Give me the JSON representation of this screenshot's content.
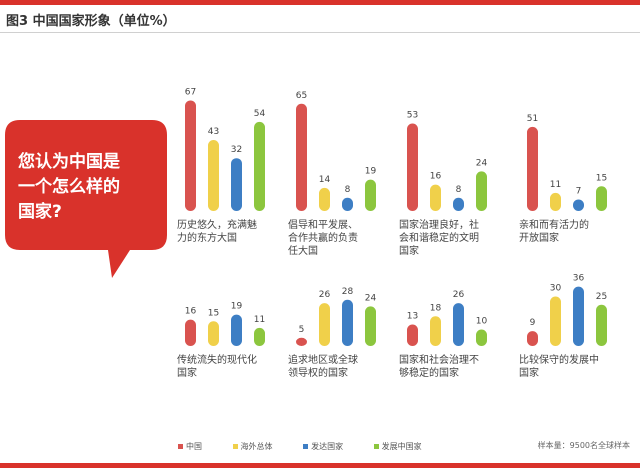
{
  "title": "图3 中国国家形象（单位%）",
  "question": [
    "您认为中国是",
    "一个怎么样的",
    "国家?"
  ],
  "source": "样本量：9500名全球样本",
  "colors": {
    "accent": "#d9322b",
    "china": "#d9534f",
    "overseas": "#f0d04a",
    "developed": "#3d7ec4",
    "developing": "#8cc63e"
  },
  "chart_data": {
    "type": "bar",
    "series": [
      {
        "name": "中国"
      },
      {
        "name": "海外总体"
      },
      {
        "name": "发达国家"
      },
      {
        "name": "发展中国家"
      }
    ],
    "groups": [
      {
        "label": [
          "历史悠久，充满魅",
          "力的东方大国"
        ],
        "values": [
          67,
          43,
          32,
          54
        ]
      },
      {
        "label": [
          "倡导和平发展、",
          "合作共赢的负责",
          "任大国"
        ],
        "values": [
          65,
          14,
          8,
          19
        ]
      },
      {
        "label": [
          "国家治理良好，社",
          "会和谐稳定的文明",
          "国家"
        ],
        "values": [
          53,
          16,
          8,
          24
        ]
      },
      {
        "label": [
          "亲和而有活力的",
          "开放国家"
        ],
        "values": [
          51,
          11,
          7,
          15
        ]
      },
      {
        "label": [
          "传统流失的现代化",
          "国家"
        ],
        "values": [
          16,
          15,
          19,
          11
        ]
      },
      {
        "label": [
          "追求地区或全球",
          "领导权的国家"
        ],
        "values": [
          5,
          26,
          28,
          24
        ]
      },
      {
        "label": [
          "国家和社会治理不",
          "够稳定的国家"
        ],
        "values": [
          13,
          18,
          26,
          10
        ]
      },
      {
        "label": [
          "比较保守的发展中",
          "国家"
        ],
        "values": [
          9,
          30,
          36,
          25
        ]
      }
    ]
  }
}
